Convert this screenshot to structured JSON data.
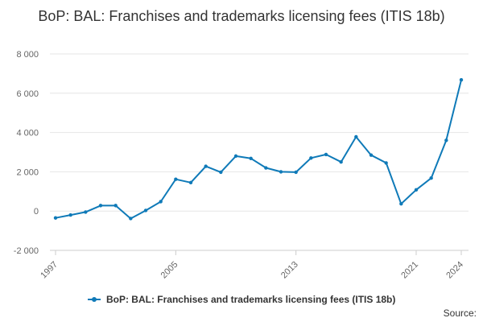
{
  "chart_data": {
    "type": "line",
    "title": "BoP: BAL: Franchises and trademarks licensing fees (ITIS 18b)",
    "xlabel": "",
    "ylabel": "",
    "x": [
      1997,
      1998,
      1999,
      2000,
      2001,
      2002,
      2003,
      2004,
      2005,
      2006,
      2007,
      2008,
      2009,
      2010,
      2011,
      2012,
      2013,
      2014,
      2015,
      2016,
      2017,
      2018,
      2019,
      2020,
      2021,
      2022,
      2023,
      2024
    ],
    "series": [
      {
        "name": "BoP: BAL: Franchises and trademarks licensing fees (ITIS 18b)",
        "values": [
          -350,
          -200,
          -50,
          280,
          280,
          -380,
          30,
          480,
          1620,
          1450,
          2280,
          1980,
          2800,
          2680,
          2200,
          2000,
          1980,
          2700,
          2880,
          2500,
          3780,
          2850,
          2450,
          370,
          1080,
          1680,
          3600,
          6680
        ]
      }
    ],
    "xticks": [
      1997,
      2005,
      2013,
      2021,
      2024
    ],
    "xtick_labels": [
      "1997",
      "2005",
      "2013",
      "2021",
      "2024"
    ],
    "yticks": [
      -2000,
      0,
      2000,
      4000,
      6000,
      8000
    ],
    "ytick_labels": [
      "-2 000",
      "0",
      "2 000",
      "4 000",
      "6 000",
      "8 000"
    ],
    "ylim": [
      -2000,
      8000
    ],
    "xlim": [
      1997,
      2024
    ],
    "grid": true,
    "legend_position": "bottom",
    "color": "#0f7ab8",
    "source_label": "Source:"
  }
}
